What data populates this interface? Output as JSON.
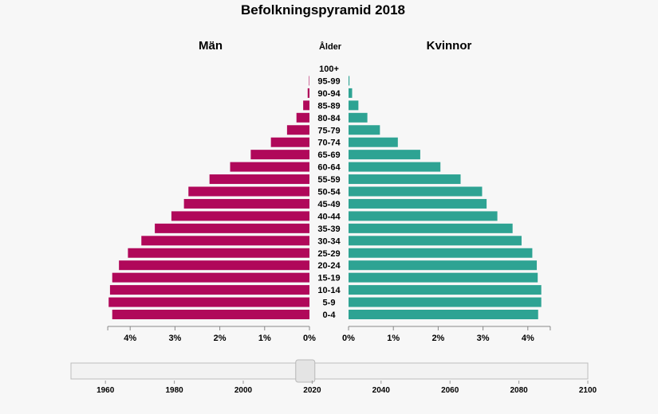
{
  "title": "Befolkningspyramid 2018",
  "men_label": "Män",
  "women_label": "Kvinnor",
  "age_header": "Ålder",
  "colors": {
    "men": "#b0085a",
    "women": "#2ea393"
  },
  "chart_data": {
    "type": "bar",
    "orientation": "horizontal-pyramid",
    "title": "Befolkningspyramid 2018",
    "categories": [
      "100+",
      "95-99",
      "90-94",
      "85-89",
      "80-84",
      "75-79",
      "70-74",
      "65-69",
      "60-64",
      "55-59",
      "50-54",
      "45-49",
      "40-44",
      "35-39",
      "30-34",
      "25-29",
      "20-24",
      "15-19",
      "10-14",
      "5-9",
      "0-4"
    ],
    "series": [
      {
        "name": "Män",
        "values": [
          0,
          0.01,
          0.04,
          0.14,
          0.29,
          0.5,
          0.86,
          1.31,
          1.77,
          2.23,
          2.7,
          2.8,
          3.08,
          3.45,
          3.75,
          4.05,
          4.25,
          4.4,
          4.45,
          4.48,
          4.4
        ]
      },
      {
        "name": "Kvinnor",
        "values": [
          0,
          0.02,
          0.08,
          0.22,
          0.42,
          0.7,
          1.1,
          1.6,
          2.05,
          2.5,
          2.98,
          3.08,
          3.32,
          3.66,
          3.86,
          4.1,
          4.2,
          4.22,
          4.3,
          4.3,
          4.23
        ]
      }
    ],
    "xlim": [
      0,
      4.5
    ],
    "xticks": [
      "4%",
      "3%",
      "2%",
      "1%",
      "0%"
    ],
    "xticks_women": [
      "0%",
      "1%",
      "2%",
      "3%",
      "4%"
    ],
    "slider": {
      "value": 2018,
      "min": 1950,
      "max": 2100,
      "tick_labels": [
        "1960",
        "1980",
        "2000",
        "2020",
        "2040",
        "2060",
        "2080",
        "2100"
      ]
    }
  }
}
